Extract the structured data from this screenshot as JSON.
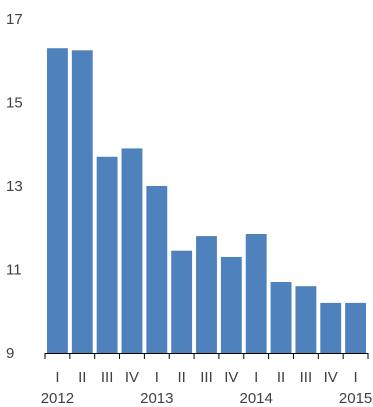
{
  "chart_data": {
    "type": "bar",
    "categories": [
      "I",
      "II",
      "III",
      "IV",
      "I",
      "II",
      "III",
      "IV",
      "I",
      "II",
      "III",
      "IV",
      "I"
    ],
    "years": [
      {
        "label": "2012",
        "start_index": 0
      },
      {
        "label": "2013",
        "start_index": 4
      },
      {
        "label": "2014",
        "start_index": 8
      },
      {
        "label": "2015",
        "start_index": 12
      }
    ],
    "values": [
      16.3,
      16.25,
      13.7,
      13.9,
      13.0,
      11.45,
      11.8,
      11.3,
      11.85,
      10.7,
      10.6,
      10.2,
      10.2
    ],
    "ylim": [
      9,
      17
    ],
    "y_ticks": [
      9,
      11,
      13,
      15,
      17
    ],
    "title": "",
    "xlabel": "",
    "ylabel": "",
    "grid": false,
    "bar_color": "#4f81bd"
  }
}
